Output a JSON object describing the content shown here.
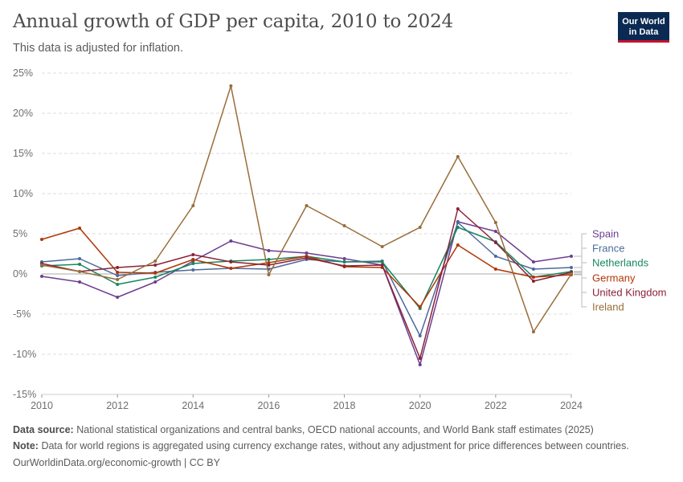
{
  "title": "Annual growth of GDP per capita, 2010 to 2024",
  "subtitle": "This data is adjusted for inflation.",
  "logo": {
    "line1": "Our World",
    "line2": "in Data",
    "bg": "#0b2a53",
    "accent": "#c8102e"
  },
  "footer": {
    "source_label": "Data source:",
    "source_text": "National statistical organizations and central banks, OECD national accounts, and World Bank staff estimates (2025)",
    "note_label": "Note:",
    "note_text": "Data for world regions is aggregated using currency exchange rates, without any adjustment for price differences between countries.",
    "url_text": "OurWorldinData.org/economic-growth | CC BY"
  },
  "chart_data": {
    "type": "line",
    "x": [
      2010,
      2011,
      2012,
      2013,
      2014,
      2015,
      2016,
      2017,
      2018,
      2019,
      2020,
      2021,
      2022,
      2023,
      2024
    ],
    "xticks": [
      2010,
      2012,
      2014,
      2016,
      2018,
      2020,
      2022,
      2024
    ],
    "ylim": [
      -15,
      25
    ],
    "yticks": [
      -15,
      -10,
      -5,
      0,
      5,
      10,
      15,
      20,
      25
    ],
    "ytick_labels": [
      "-15%",
      "-10%",
      "-5%",
      "0%",
      "5%",
      "10%",
      "15%",
      "20%",
      "25%"
    ],
    "grid": "horizontal-dashed",
    "legend_position": "right",
    "series": [
      {
        "name": "Spain",
        "color": "#6d3e91",
        "values": [
          -0.3,
          -1.0,
          -2.9,
          -1.0,
          1.6,
          4.1,
          2.9,
          2.6,
          1.9,
          1.1,
          -11.3,
          6.5,
          5.3,
          1.5,
          2.2
        ]
      },
      {
        "name": "France",
        "color": "#4c6a9c",
        "values": [
          1.5,
          1.9,
          -0.2,
          0.2,
          0.5,
          0.7,
          0.6,
          1.8,
          1.5,
          1.6,
          -7.7,
          6.4,
          2.2,
          0.6,
          0.8
        ]
      },
      {
        "name": "Netherlands",
        "color": "#18875d",
        "values": [
          1.0,
          1.2,
          -1.3,
          -0.4,
          1.3,
          1.6,
          1.8,
          2.2,
          1.5,
          1.5,
          -4.3,
          5.8,
          4.0,
          -0.4,
          0.3
        ]
      },
      {
        "name": "Germany",
        "color": "#b13507",
        "values": [
          4.3,
          5.7,
          0.2,
          0.1,
          1.8,
          0.7,
          1.4,
          2.2,
          0.9,
          0.8,
          -4.1,
          3.6,
          0.6,
          -0.4,
          -0.1
        ]
      },
      {
        "name": "United Kingdom",
        "color": "#8a2239",
        "values": [
          1.3,
          0.3,
          0.8,
          1.1,
          2.4,
          1.5,
          1.1,
          2.0,
          1.0,
          1.1,
          -10.5,
          8.1,
          3.9,
          -0.9,
          0.2
        ]
      },
      {
        "name": "Ireland",
        "color": "#996d39",
        "values": [
          1.1,
          0.3,
          -0.7,
          1.6,
          8.5,
          23.4,
          -0.1,
          8.5,
          6.0,
          3.4,
          5.8,
          14.6,
          6.4,
          -7.2,
          0.0
        ]
      }
    ]
  }
}
